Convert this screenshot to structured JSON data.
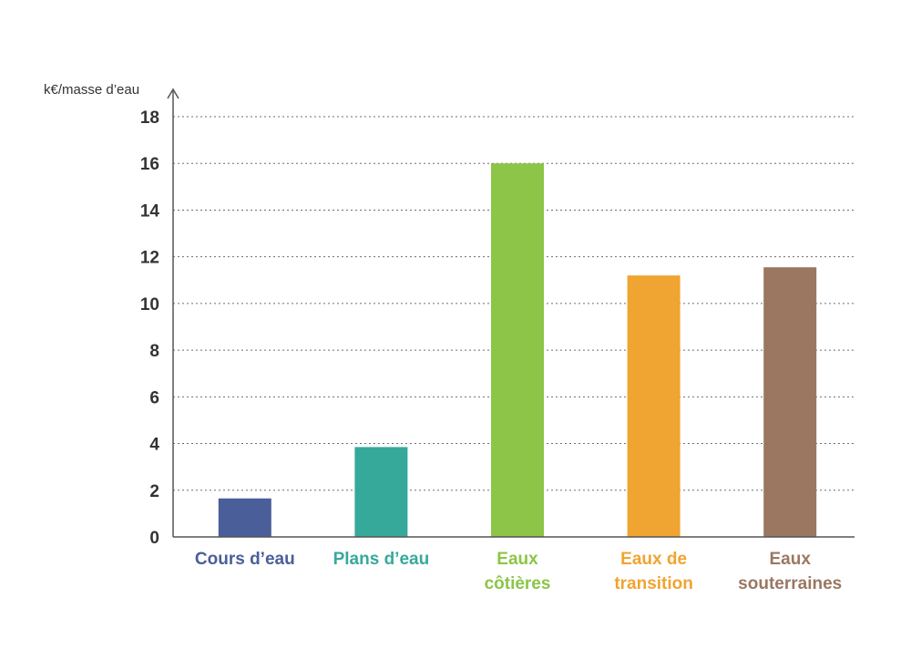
{
  "chart_data": {
    "type": "bar",
    "ylabel": "k€/masse d’eau",
    "ylim": [
      0,
      18
    ],
    "yticks": [
      0,
      2,
      4,
      6,
      8,
      10,
      12,
      14,
      16,
      18
    ],
    "grid": true,
    "categories": [
      [
        "Cours d’eau"
      ],
      [
        "Plans d’eau"
      ],
      [
        "Eaux",
        "côtières"
      ],
      [
        "Eaux de",
        "transition"
      ],
      [
        "Eaux",
        "souterraines"
      ]
    ],
    "values": [
      1.65,
      3.85,
      16.0,
      11.2,
      11.55
    ],
    "colors": [
      "#4a5e9a",
      "#36a99a",
      "#8cc547",
      "#f0a431",
      "#9b7762"
    ]
  }
}
